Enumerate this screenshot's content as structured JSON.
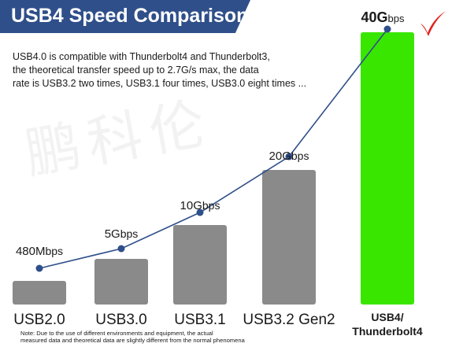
{
  "header": {
    "title": "USB4 Speed Comparison"
  },
  "description": [
    "USB4.0 is compatible with Thunderbolt4 and Thunderbolt3,",
    "the theoretical transfer speed up to 2.7G/s max, the data",
    "rate is USB3.2 two times, USB3.1 four times, USB3.0 eight times ..."
  ],
  "footnote": [
    "Note: Due to the use of different environments and equipment, the actual",
    "measured data and theoretical data are slightly different from the normal phenomena"
  ],
  "watermark": "鹏科伦",
  "colors": {
    "banner": "#2f4f8a",
    "bar_default": "#8a8a8a",
    "bar_highlight": "#39e600",
    "line": "#2f4f8a",
    "check": "#e0201b"
  },
  "chart_data": {
    "type": "bar",
    "title": "USB4 Speed Comparison",
    "categories": [
      "USB2.0",
      "USB3.0",
      "USB3.1",
      "USB3.2 Gen2",
      "USB4/Thunderbolt4"
    ],
    "category_label_lines": [
      [
        "USB2.0"
      ],
      [
        "USB3.0"
      ],
      [
        "USB3.1"
      ],
      [
        "USB3.2 Gen2"
      ],
      [
        "USB4/",
        "Thunderbolt4"
      ]
    ],
    "values_gbps": [
      0.48,
      5,
      10,
      20,
      40
    ],
    "data_labels": [
      {
        "num": "480M",
        "unit": "bps"
      },
      {
        "num": "5G",
        "unit": "bps"
      },
      {
        "num": "10G",
        "unit": "bps"
      },
      {
        "num": "20G",
        "unit": "bps"
      },
      {
        "num": "40G",
        "unit": "bps"
      }
    ],
    "highlight_index": 4,
    "overlay": "line connecting the top of each value",
    "xlabel": "",
    "ylabel": "",
    "grid": false,
    "legend": "none"
  }
}
